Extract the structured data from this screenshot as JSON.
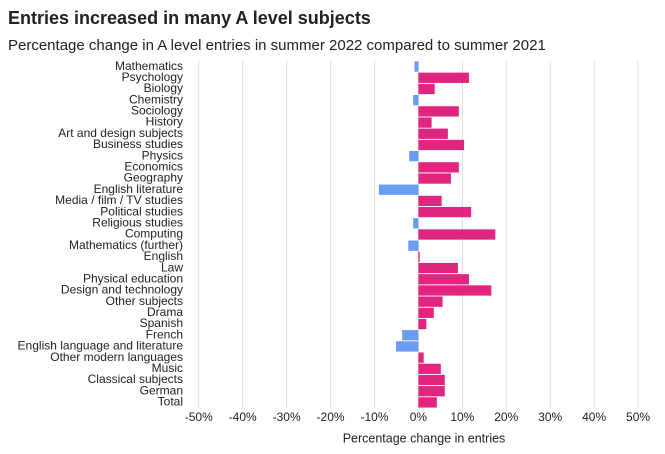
{
  "chart_data": {
    "type": "hbar",
    "title": "Entries increased in many A level subjects",
    "subtitle": "Percentage change in A level entries in summer 2022 compared to summer 2021",
    "x_label": "Percentage change in entries",
    "categories": [
      "Mathematics",
      "Psychology",
      "Biology",
      "Chemistry",
      "Sociology",
      "History",
      "Art and design subjects",
      "Business studies",
      "Physics",
      "Economics",
      "Geography",
      "English literature",
      "Media / film / TV studies",
      "Political studies",
      "Religious studies",
      "Computing",
      "Mathematics (further)",
      "English",
      "Law",
      "Physical education",
      "Design and technology",
      "Other subjects",
      "Drama",
      "Spanish",
      "French",
      "English language and literature",
      "Other modern languages",
      "Music",
      "Classical subjects",
      "German",
      "Total"
    ],
    "values": [
      -0.9,
      11.5,
      3.7,
      -1.2,
      9.2,
      3.0,
      6.7,
      10.4,
      -2.1,
      9.2,
      7.4,
      -9.0,
      5.3,
      12.0,
      -1.2,
      17.5,
      -2.3,
      0.3,
      9.0,
      11.5,
      16.6,
      5.5,
      3.5,
      1.8,
      -3.7,
      -5.1,
      1.2,
      5.1,
      6.0,
      6.0,
      4.2
    ],
    "positive_color": "#e0257f",
    "negative_color": "#6b9cf3",
    "xlim": [
      -52,
      55
    ],
    "xticks": [
      {
        "value": -50,
        "label": "-50%"
      },
      {
        "value": -40,
        "label": "-40%"
      },
      {
        "value": -30,
        "label": "-30%"
      },
      {
        "value": -20,
        "label": "-20%"
      },
      {
        "value": -10,
        "label": "-10%"
      },
      {
        "value": 0,
        "label": "0%"
      },
      {
        "value": 10,
        "label": "10%"
      },
      {
        "value": 20,
        "label": "20%"
      },
      {
        "value": 30,
        "label": "30%"
      },
      {
        "value": 40,
        "label": "40%"
      },
      {
        "value": 50,
        "label": "50%"
      }
    ],
    "grid": true
  }
}
